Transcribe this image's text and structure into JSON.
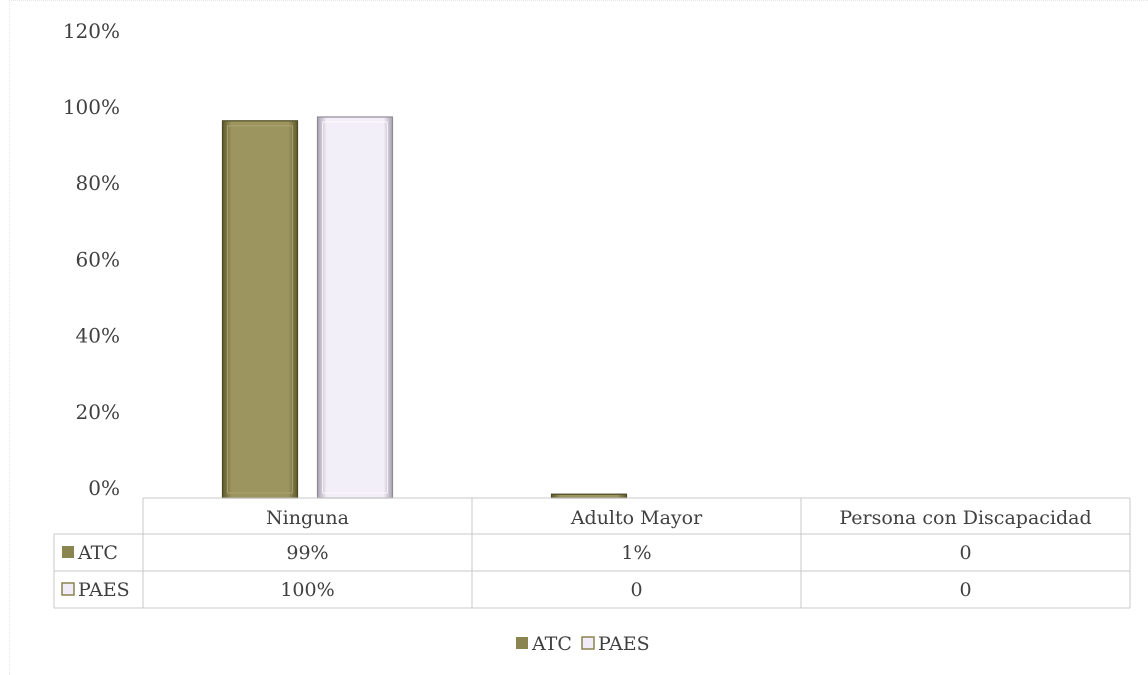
{
  "chart_data": {
    "type": "bar",
    "categories": [
      "Ninguna",
      "Adulto Mayor",
      "Persona con Discapacidad"
    ],
    "y_ticks": [
      "0%",
      "20%",
      "40%",
      "60%",
      "80%",
      "100%",
      "120%"
    ],
    "ylim": [
      0,
      120
    ],
    "series": [
      {
        "name": "ATC",
        "values": [
          99,
          1,
          0
        ],
        "labels": [
          "99%",
          "1%",
          "0"
        ],
        "color": "#8a8450"
      },
      {
        "name": "PAES",
        "values": [
          100,
          0,
          0
        ],
        "labels": [
          "100%",
          "0",
          "0"
        ],
        "color": "#f1ecf7"
      }
    ],
    "legend_position": "bottom",
    "data_table": true,
    "grid": false
  }
}
